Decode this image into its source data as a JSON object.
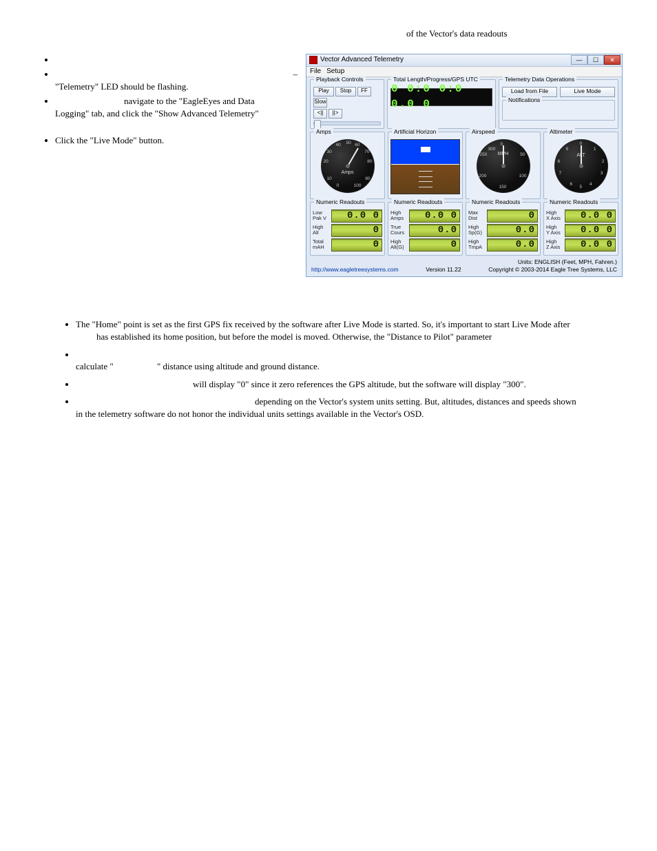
{
  "intro_tail": "of the Vector's data readouts",
  "left_bullets": {
    "b1": " ",
    "b2": " ",
    "b2_cont": "\"Telemetry\" LED should be flashing.",
    "b3": " ",
    "b3_cont1": "navigate to the \"EagleEyes and Data",
    "b3_cont2": "Logging\" tab, and click the \"Show Advanced Telemetry\"",
    "b4": "Click the \"Live Mode\" button."
  },
  "notes_heading": " ",
  "notes": {
    "n1a": "The \"Home\" point is set as the first GPS fix received by the software after Live Mode is started. So, it's important to start Live Mode after",
    "n1b": "has established its home position, but before the model is moved.  Otherwise, the \"Distance to Pilot\" parameter",
    "n2a": " ",
    "n2b": "calculate \"",
    "n2c": "\" distance using altitude and ground distance.",
    "n3a": " ",
    "n3b": "will display \"0\" since it zero references the GPS altitude, but the software will display \"300\".",
    "n4a": " ",
    "n4b": "depending on the Vector's system units setting.   But, altitudes, distances and speeds shown",
    "n4c": "in the telemetry software do not honor the individual units settings available in the Vector's OSD."
  },
  "win": {
    "title": "Vector Advanced Telemetry",
    "menu_file": "File",
    "menu_setup": "Setup",
    "group_playback": "Playback Controls",
    "play": "Play",
    "stop": "Stop",
    "ff": "FF",
    "slow": "Slow",
    "skip_back": "<||",
    "skip_fwd": "||>",
    "group_time": "Total Length/Progress/GPS UTC",
    "timecode": "0 0:0 0:0 0.0 0",
    "group_tdo": "Telemetry Data Operations",
    "load_file": "Load from File",
    "live_mode": "Live Mode",
    "group_notif": "Notifications",
    "g_amps": "Amps",
    "g_ah": "Artificial Horizon",
    "g_air": "Airspeed",
    "g_alt": "Altimeter",
    "amps_unit": "Amps",
    "air_unit": "MPH",
    "alt_unit": "ALT",
    "group_ro": "Numeric Readouts",
    "ro": [
      [
        {
          "name": "Low\nPak V",
          "val": "0.0 0"
        },
        {
          "name": "High\nAlt",
          "val": "0"
        },
        {
          "name": "Total\nmAH",
          "val": "0"
        }
      ],
      [
        {
          "name": "High\nAmps",
          "val": "0.0 0"
        },
        {
          "name": "True\nCours",
          "val": "0.0"
        },
        {
          "name": "High\nAlt(G)",
          "val": "0"
        }
      ],
      [
        {
          "name": "Max\nDist",
          "val": "0"
        },
        {
          "name": "High\nSp(G)",
          "val": "0.0"
        },
        {
          "name": "High\nTmpA",
          "val": "0.0"
        }
      ],
      [
        {
          "name": "High\nX Axis",
          "val": "0.0 0"
        },
        {
          "name": "High\nY Axis",
          "val": "0.0 0"
        },
        {
          "name": "High\nZ Axis",
          "val": "0.0 0"
        }
      ]
    ],
    "footer_url": "http://www.eagletreesystems.com",
    "footer_ver": "Version 11.22",
    "footer_units": "Units: ENGLISH (Feet, MPH, Fahren.)",
    "footer_copy": "Copyright © 2003-2014 Eagle Tree Systems, LLC",
    "amps_ticks": [
      "0",
      "10",
      "20",
      "30",
      "40",
      "50",
      "60",
      "70",
      "80",
      "90",
      "100"
    ],
    "air_ticks": [
      "0",
      "50",
      "100",
      "150",
      "200",
      "250",
      "300"
    ]
  },
  "colors": {
    "window_border": "#7da2ce",
    "window_bg": "#dfe8f4",
    "lcd_green": "#b6d54a",
    "lcd_time_green": "#7cff3a",
    "horizon_sky": "#0040ff",
    "horizon_ground": "#7a4a1a",
    "close_btn": "#c0392b"
  }
}
